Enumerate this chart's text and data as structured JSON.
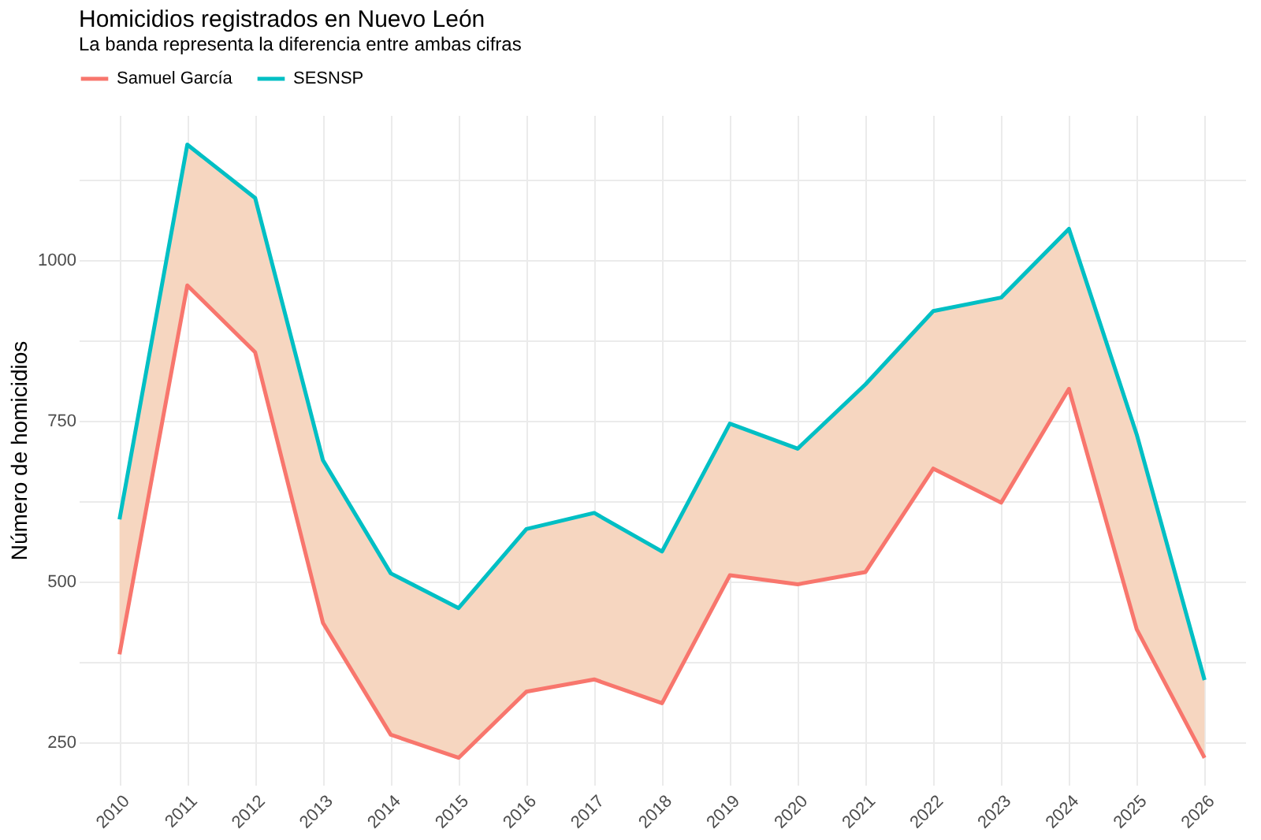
{
  "chart_data": {
    "type": "line",
    "title": "Homicidios registrados en Nuevo León",
    "subtitle": "La banda representa la diferencia entre ambas cifras",
    "ylabel": "Número de homicidios",
    "x": [
      2010,
      2011,
      2012,
      2013,
      2014,
      2015,
      2016,
      2017,
      2018,
      2019,
      2020,
      2021,
      2022,
      2023,
      2024,
      2025,
      2026
    ],
    "series": [
      {
        "name": "Samuel García",
        "color": "#f8766d",
        "values": [
          387,
          961,
          857,
          436,
          262,
          226,
          329,
          348,
          311,
          510,
          496,
          515,
          676,
          623,
          800,
          426,
          226
        ]
      },
      {
        "name": "SESNSP",
        "color": "#00bfc4",
        "values": [
          597,
          1180,
          1097,
          689,
          513,
          459,
          582,
          607,
          547,
          746,
          707,
          807,
          921,
          942,
          1049,
          729,
          347
        ],
        "lower": [
          387,
          961,
          857,
          436,
          262,
          226,
          329,
          348,
          311,
          510,
          496,
          515,
          676,
          623,
          800,
          426,
          226
        ],
        "upper": [
          597,
          1180,
          1097,
          689,
          513,
          459,
          582,
          607,
          547,
          746,
          707,
          807,
          921,
          942,
          1049,
          729,
          347
        ]
      }
    ],
    "xlim": [
      2009.4,
      2026.6
    ],
    "xticks": [
      2010,
      2011,
      2012,
      2013,
      2014,
      2015,
      2016,
      2017,
      2018,
      2019,
      2020,
      2021,
      2022,
      2023,
      2024,
      2025,
      2026
    ],
    "ylim": [
      184,
      1226
    ],
    "yticks": [
      250,
      {
        "value": 375,
        "label": null
      },
      500,
      {
        "value": 625,
        "label": null
      },
      750,
      {
        "value": 875,
        "label": null
      },
      1000,
      {
        "value": 1125,
        "label": null
      }
    ],
    "grid": true,
    "legend": "top",
    "marker": "none",
    "line_style": "solid"
  }
}
